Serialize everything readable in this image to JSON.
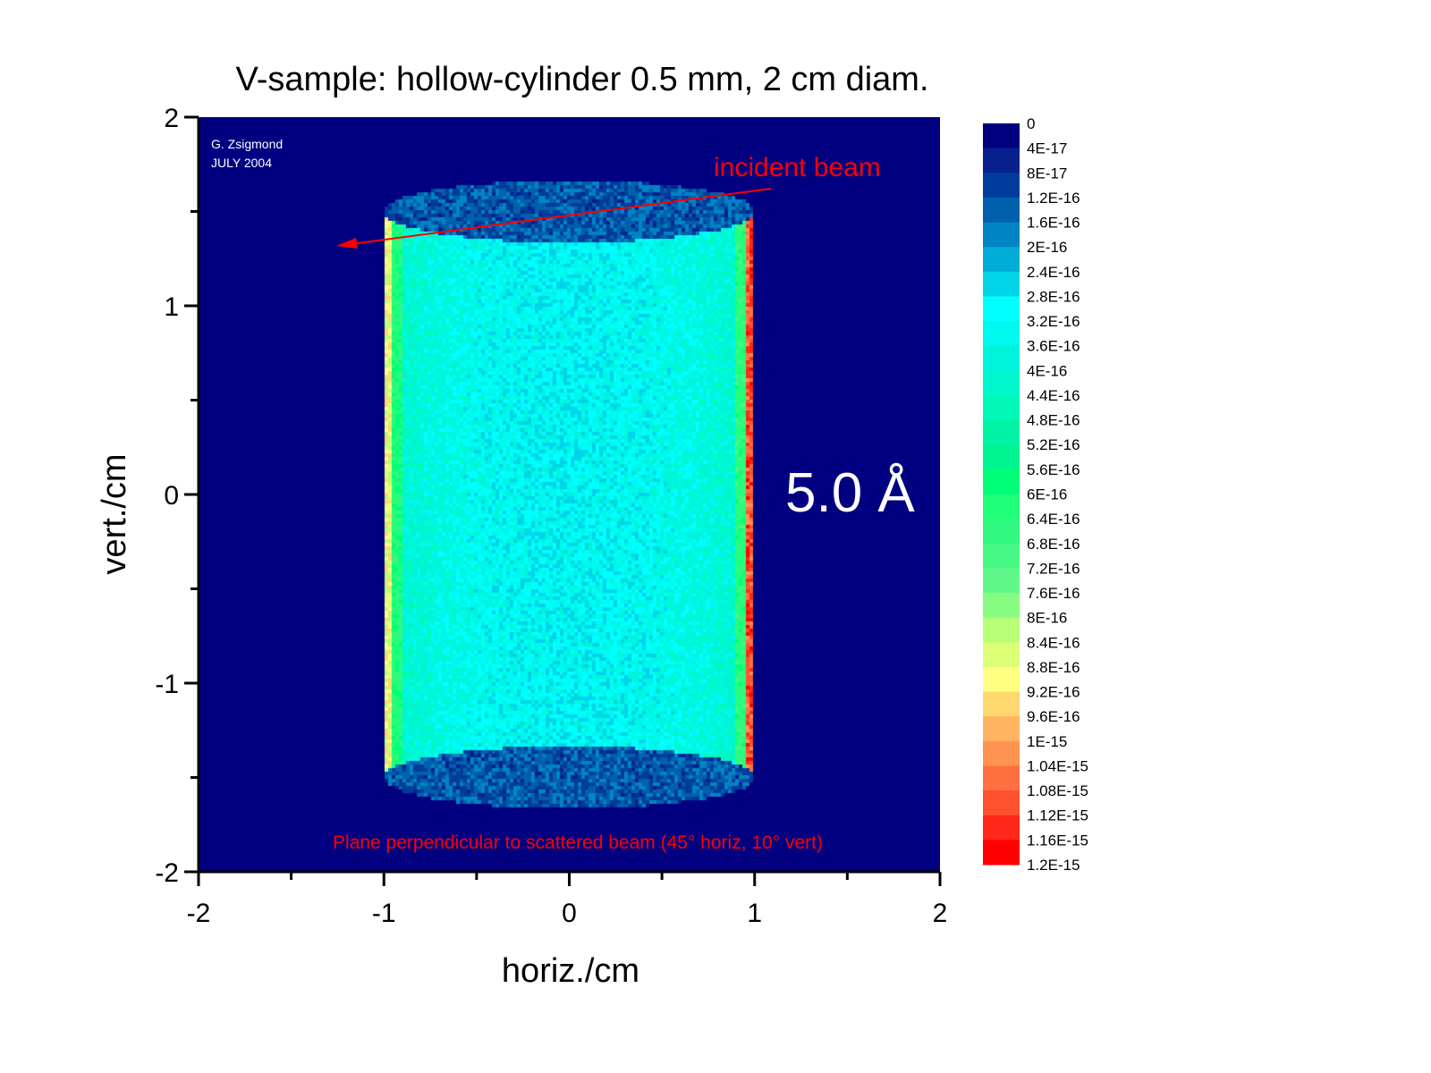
{
  "chart_data": {
    "type": "heatmap",
    "title": "V-sample: hollow-cylinder 0.5 mm, 2 cm diam.",
    "xlabel": "horiz./cm",
    "ylabel": "vert./cm",
    "xlim": [
      -2,
      2
    ],
    "ylim": [
      -2,
      2
    ],
    "xticks": [
      -2,
      -1,
      0,
      1,
      2
    ],
    "yticks": [
      -2,
      -1,
      0,
      1,
      2
    ],
    "xtick_labels": [
      "-2",
      "-1",
      "0",
      "1",
      "2"
    ],
    "ytick_labels": [
      "-2",
      "-1",
      "0",
      "1",
      "2"
    ],
    "grid": false,
    "background_color": "#000080",
    "colorbar": {
      "placement": "right",
      "min": 0,
      "max": 1.2e-15,
      "labels": [
        "0",
        "4E-17",
        "8E-17",
        "1.2E-16",
        "1.6E-16",
        "2E-16",
        "2.4E-16",
        "2.8E-16",
        "3.2E-16",
        "3.6E-16",
        "4E-16",
        "4.4E-16",
        "4.8E-16",
        "5.2E-16",
        "5.6E-16",
        "6E-16",
        "6.4E-16",
        "6.8E-16",
        "7.2E-16",
        "7.6E-16",
        "8E-16",
        "8.4E-16",
        "8.8E-16",
        "9.2E-16",
        "9.6E-16",
        "1E-15",
        "1.04E-15",
        "1.08E-15",
        "1.12E-15",
        "1.16E-15",
        "1.2E-15"
      ],
      "colors": [
        "#000080",
        "#08208c",
        "#003c9c",
        "#0060ac",
        "#0084c4",
        "#00acd8",
        "#00d4e8",
        "#00ffff",
        "#00f8ee",
        "#00f4dc",
        "#00f8cc",
        "#00f8b8",
        "#00f4a4",
        "#00f490",
        "#00ff78",
        "#20ff78",
        "#30f880",
        "#48f884",
        "#60f888",
        "#88fc80",
        "#b8ff78",
        "#dcff78",
        "#ffff80",
        "#ffd870",
        "#ffb460",
        "#ff9450",
        "#ff7040",
        "#ff5030",
        "#ff2818",
        "#ff0000"
      ]
    },
    "depicted_object": "hollow cylinder, x from -1 to 1 cm, y from about -1.5 to 1.5 cm",
    "annotations": {
      "author": "G. Zsigmond",
      "date": "JULY 2004",
      "beam_label": "incident beam",
      "wavelength": "5.0 Å",
      "plane_note": "Plane perpendicular to scattered beam (45° horiz, 10° vert)"
    },
    "annotation_color": "#ff0000"
  }
}
